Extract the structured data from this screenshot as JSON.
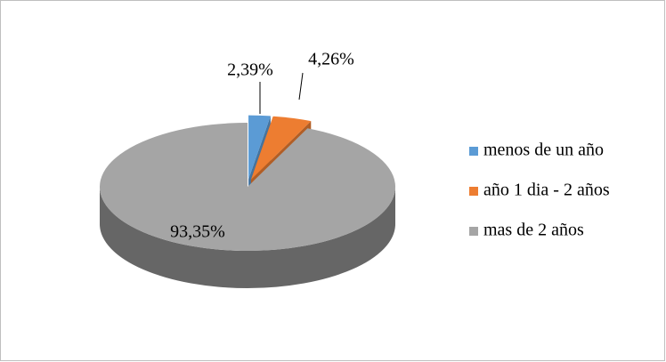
{
  "chart_data": {
    "type": "pie",
    "categories": [
      "menos de un año",
      "año 1 dia - 2 años",
      "mas de 2 años"
    ],
    "values": [
      2.39,
      4.26,
      93.35
    ],
    "value_labels": [
      "2,39%",
      "4,26%",
      "93,35%"
    ],
    "colors": [
      "#5b9bd5",
      "#ed7d31",
      "#a5a5a5"
    ],
    "legend": "right"
  }
}
